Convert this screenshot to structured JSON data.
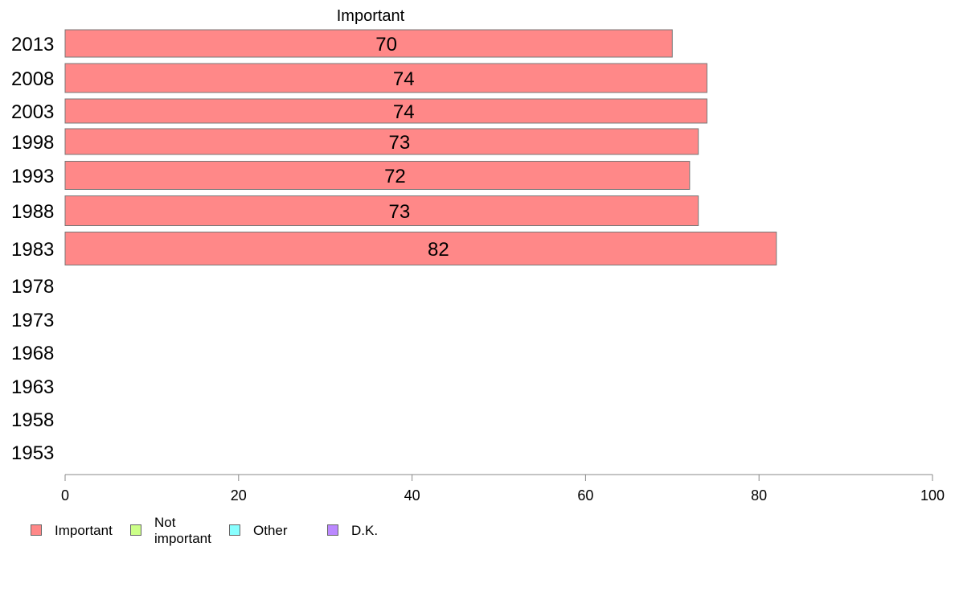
{
  "chart_data": {
    "type": "bar",
    "orientation": "horizontal",
    "title": "Important",
    "categories": [
      "2013",
      "2008",
      "2003",
      "1998",
      "1993",
      "1988",
      "1983",
      "1978",
      "1973",
      "1968",
      "1963",
      "1958",
      "1953"
    ],
    "series": [
      {
        "name": "Important",
        "color": "#ff8888",
        "values": [
          70,
          74,
          74,
          73,
          72,
          73,
          82,
          null,
          null,
          null,
          null,
          null,
          null
        ]
      }
    ],
    "value_labels": [
      "70",
      "74",
      "74",
      "73",
      "72",
      "73",
      "82"
    ],
    "xlim": [
      0,
      100
    ],
    "x_ticks": [
      "0",
      "20",
      "40",
      "60",
      "80",
      "100"
    ],
    "grid": false,
    "legend_position": "bottom-left"
  },
  "legend": {
    "items": [
      {
        "label": "Important",
        "color": "#ff8888"
      },
      {
        "label": "Not\nimportant",
        "color": "#ccff88"
      },
      {
        "label": "Other",
        "color": "#88ffff"
      },
      {
        "label": "D.K.",
        "color": "#bb88ff"
      }
    ]
  }
}
